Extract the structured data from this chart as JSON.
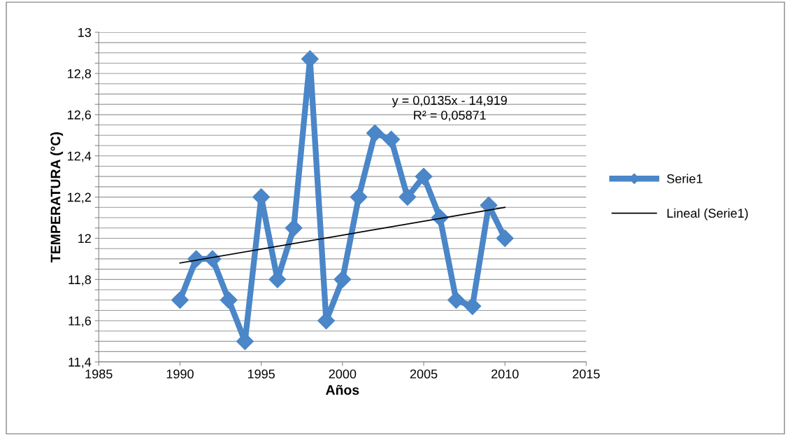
{
  "chart_data": {
    "type": "line",
    "xlabel": "Años",
    "ylabel": "TEMPERATURA (°C)",
    "x": [
      1990,
      1991,
      1992,
      1993,
      1994,
      1995,
      1996,
      1997,
      1998,
      1999,
      2000,
      2001,
      2002,
      2003,
      2004,
      2005,
      2006,
      2007,
      2008,
      2009,
      2010
    ],
    "series": [
      {
        "name": "Serie1",
        "color": "#4a86c8",
        "marker": "diamond",
        "values": [
          11.7,
          11.9,
          11.9,
          11.7,
          11.5,
          12.2,
          11.8,
          12.05,
          12.87,
          11.6,
          11.8,
          12.2,
          12.51,
          12.48,
          12.2,
          12.3,
          12.1,
          11.7,
          11.67,
          12.16,
          12.0
        ]
      },
      {
        "name": "Lineal (Serie1)",
        "color": "#000000",
        "marker": "none",
        "x": [
          1990,
          2010
        ],
        "values": [
          11.88,
          12.15
        ]
      }
    ],
    "xlim": [
      1985,
      2015
    ],
    "xticks": [
      1985,
      1990,
      1995,
      2000,
      2005,
      2010,
      2015
    ],
    "ylim": [
      11.4,
      13
    ],
    "yticks": [
      {
        "value": 11.4,
        "label": "11,4"
      },
      {
        "value": 11.45,
        "label": null
      },
      {
        "value": 11.5,
        "label": null
      },
      {
        "value": 11.55,
        "label": null
      },
      {
        "value": 11.6,
        "label": "11,6"
      },
      {
        "value": 11.65,
        "label": null
      },
      {
        "value": 11.7,
        "label": null
      },
      {
        "value": 11.75,
        "label": null
      },
      {
        "value": 11.8,
        "label": "11,8"
      },
      {
        "value": 11.85,
        "label": null
      },
      {
        "value": 11.9,
        "label": null
      },
      {
        "value": 11.95,
        "label": null
      },
      {
        "value": 12,
        "label": "12"
      },
      {
        "value": 12.05,
        "label": null
      },
      {
        "value": 12.1,
        "label": null
      },
      {
        "value": 12.15,
        "label": null
      },
      {
        "value": 12.2,
        "label": "12,2"
      },
      {
        "value": 12.25,
        "label": null
      },
      {
        "value": 12.3,
        "label": null
      },
      {
        "value": 12.35,
        "label": null
      },
      {
        "value": 12.4,
        "label": "12,4"
      },
      {
        "value": 12.45,
        "label": null
      },
      {
        "value": 12.5,
        "label": null
      },
      {
        "value": 12.55,
        "label": null
      },
      {
        "value": 12.6,
        "label": "12,6"
      },
      {
        "value": 12.65,
        "label": null
      },
      {
        "value": 12.7,
        "label": null
      },
      {
        "value": 12.75,
        "label": null
      },
      {
        "value": 12.8,
        "label": "12,8"
      },
      {
        "value": 12.85,
        "label": null
      },
      {
        "value": 12.9,
        "label": null
      },
      {
        "value": 12.95,
        "label": null
      },
      {
        "value": 13,
        "label": "13"
      }
    ],
    "grid": "y",
    "legend": "right",
    "annotations": [
      "y = 0,0135x - 14,919",
      "R² = 0,05871"
    ]
  }
}
